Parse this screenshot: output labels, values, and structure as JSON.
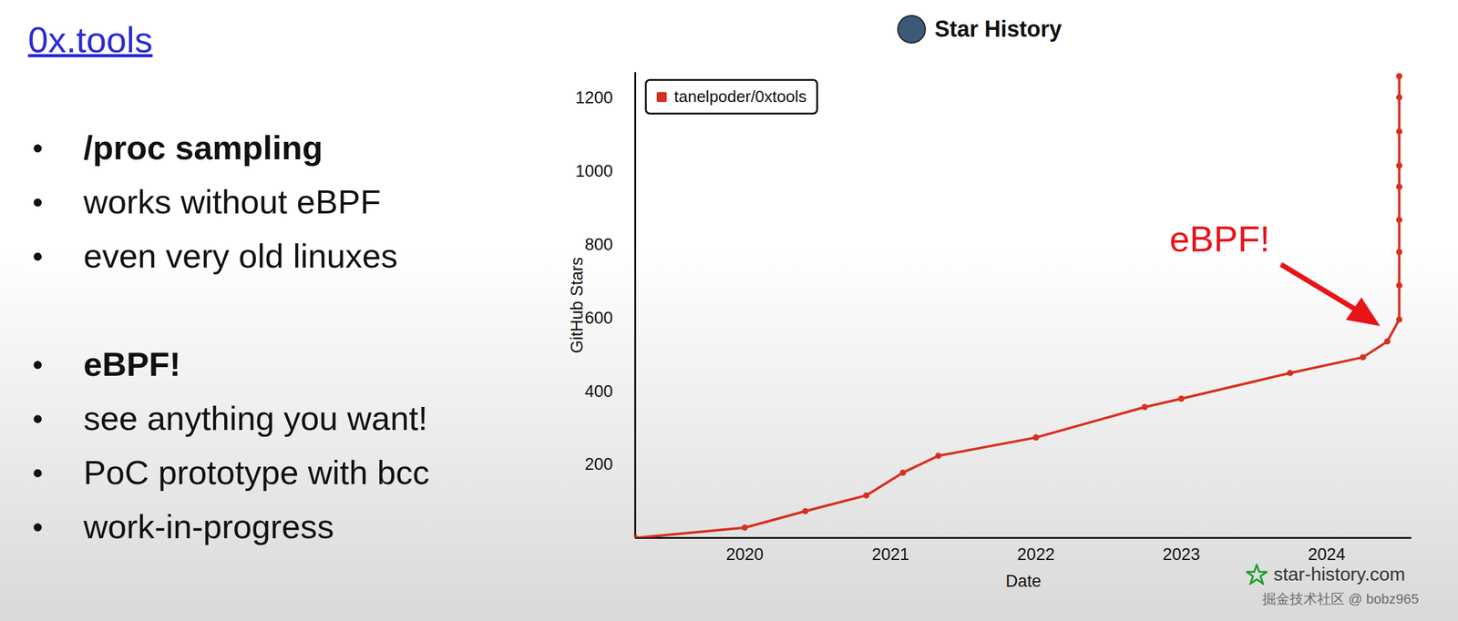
{
  "slide": {
    "title": "0x.tools",
    "sections": [
      {
        "heading": "/proc sampling",
        "items": [
          "works without eBPF",
          "even very old linuxes"
        ]
      },
      {
        "heading": "eBPF!",
        "items": [
          "see anything you want!",
          "PoC prototype with bcc",
          "work-in-progress"
        ]
      }
    ]
  },
  "chart_data": {
    "type": "line",
    "title": "Star History",
    "x_label": "Date",
    "y_label": "GitHub Stars",
    "x": [
      "2019-04",
      "2020-01",
      "2020-06",
      "2020-11",
      "2021-02",
      "2021-05",
      "2022-01",
      "2022-10",
      "2023-01",
      "2023-10",
      "2024-04",
      "2024-06",
      "2024-07",
      "2024-07",
      "2024-07",
      "2024-07",
      "2024-07",
      "2024-07",
      "2024-07",
      "2024-07",
      "2024-07"
    ],
    "series": [
      {
        "name": "tanelpoder/0xtools",
        "color": "#d7301f",
        "marker": "circle",
        "values": [
          0,
          28,
          73,
          116,
          178,
          224,
          274,
          357,
          380,
          450,
          493,
          536,
          596,
          689,
          780,
          868,
          958,
          1016,
          1109,
          1202,
          1260
        ]
      }
    ],
    "xlim": [
      "2019-04",
      "2024-08"
    ],
    "xticks": [
      "2020",
      "2021",
      "2022",
      "2023",
      "2024"
    ],
    "ylim": [
      0,
      1270
    ],
    "yticks": [
      200,
      400,
      600,
      800,
      1000,
      1200
    ],
    "grid": false,
    "legend": "top-left",
    "annotations": [
      {
        "text": "eBPF!"
      }
    ],
    "source": "star-history.com"
  },
  "watermark": "掘金技术社区 @ bobz965"
}
